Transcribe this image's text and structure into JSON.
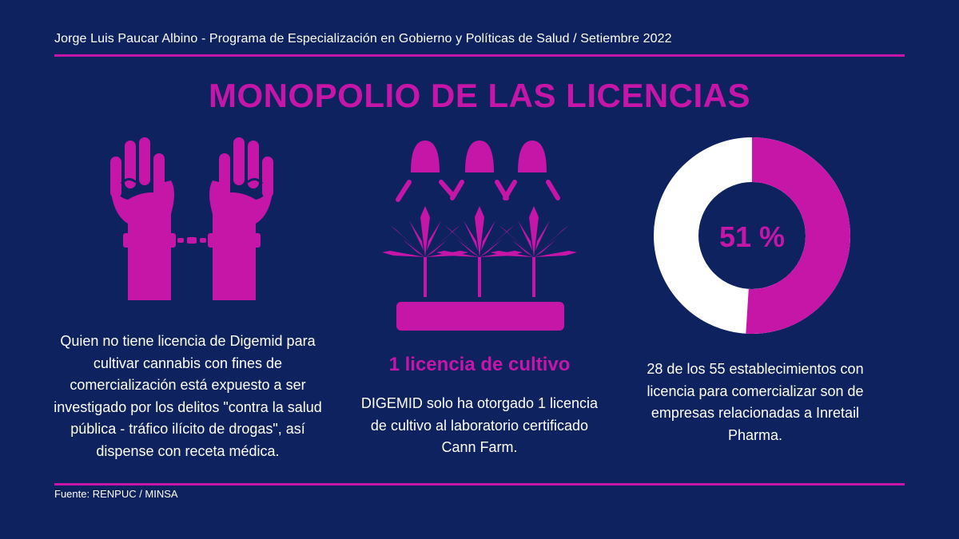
{
  "header": {
    "author_line": "Jorge Luis Paucar Albino - Programa de Especialización en Gobierno y Políticas de Salud / Setiembre 2022"
  },
  "title": "MONOPOLIO DE LAS LICENCIAS",
  "colors": {
    "background": "#0f2260",
    "accent": "#c516a8",
    "text": "#ffffff"
  },
  "columns": [
    {
      "icon": "handcuffed-hands-icon",
      "text": "Quien no tiene licencia de Digemid para cultivar cannabis con fines de comercialización está expuesto a ser investigado por los delitos \"contra la salud pública - tráfico ilícito de drogas\", así dispense con receta médica."
    },
    {
      "icon": "cannabis-grow-lights-icon",
      "subtitle": "1 licencia de cultivo",
      "text": "DIGEMID solo ha otorgado 1 licencia de cultivo al laboratorio certificado Cann Farm."
    },
    {
      "icon": "donut-chart",
      "donut_label": "51 %",
      "donut_value_percent": 51,
      "text": "28 de los 55 establecimientos con licencia para comercializar son de empresas relacionadas a Inretail Pharma."
    }
  ],
  "footer": {
    "source": "Fuente: RENPUC / MINSA"
  }
}
